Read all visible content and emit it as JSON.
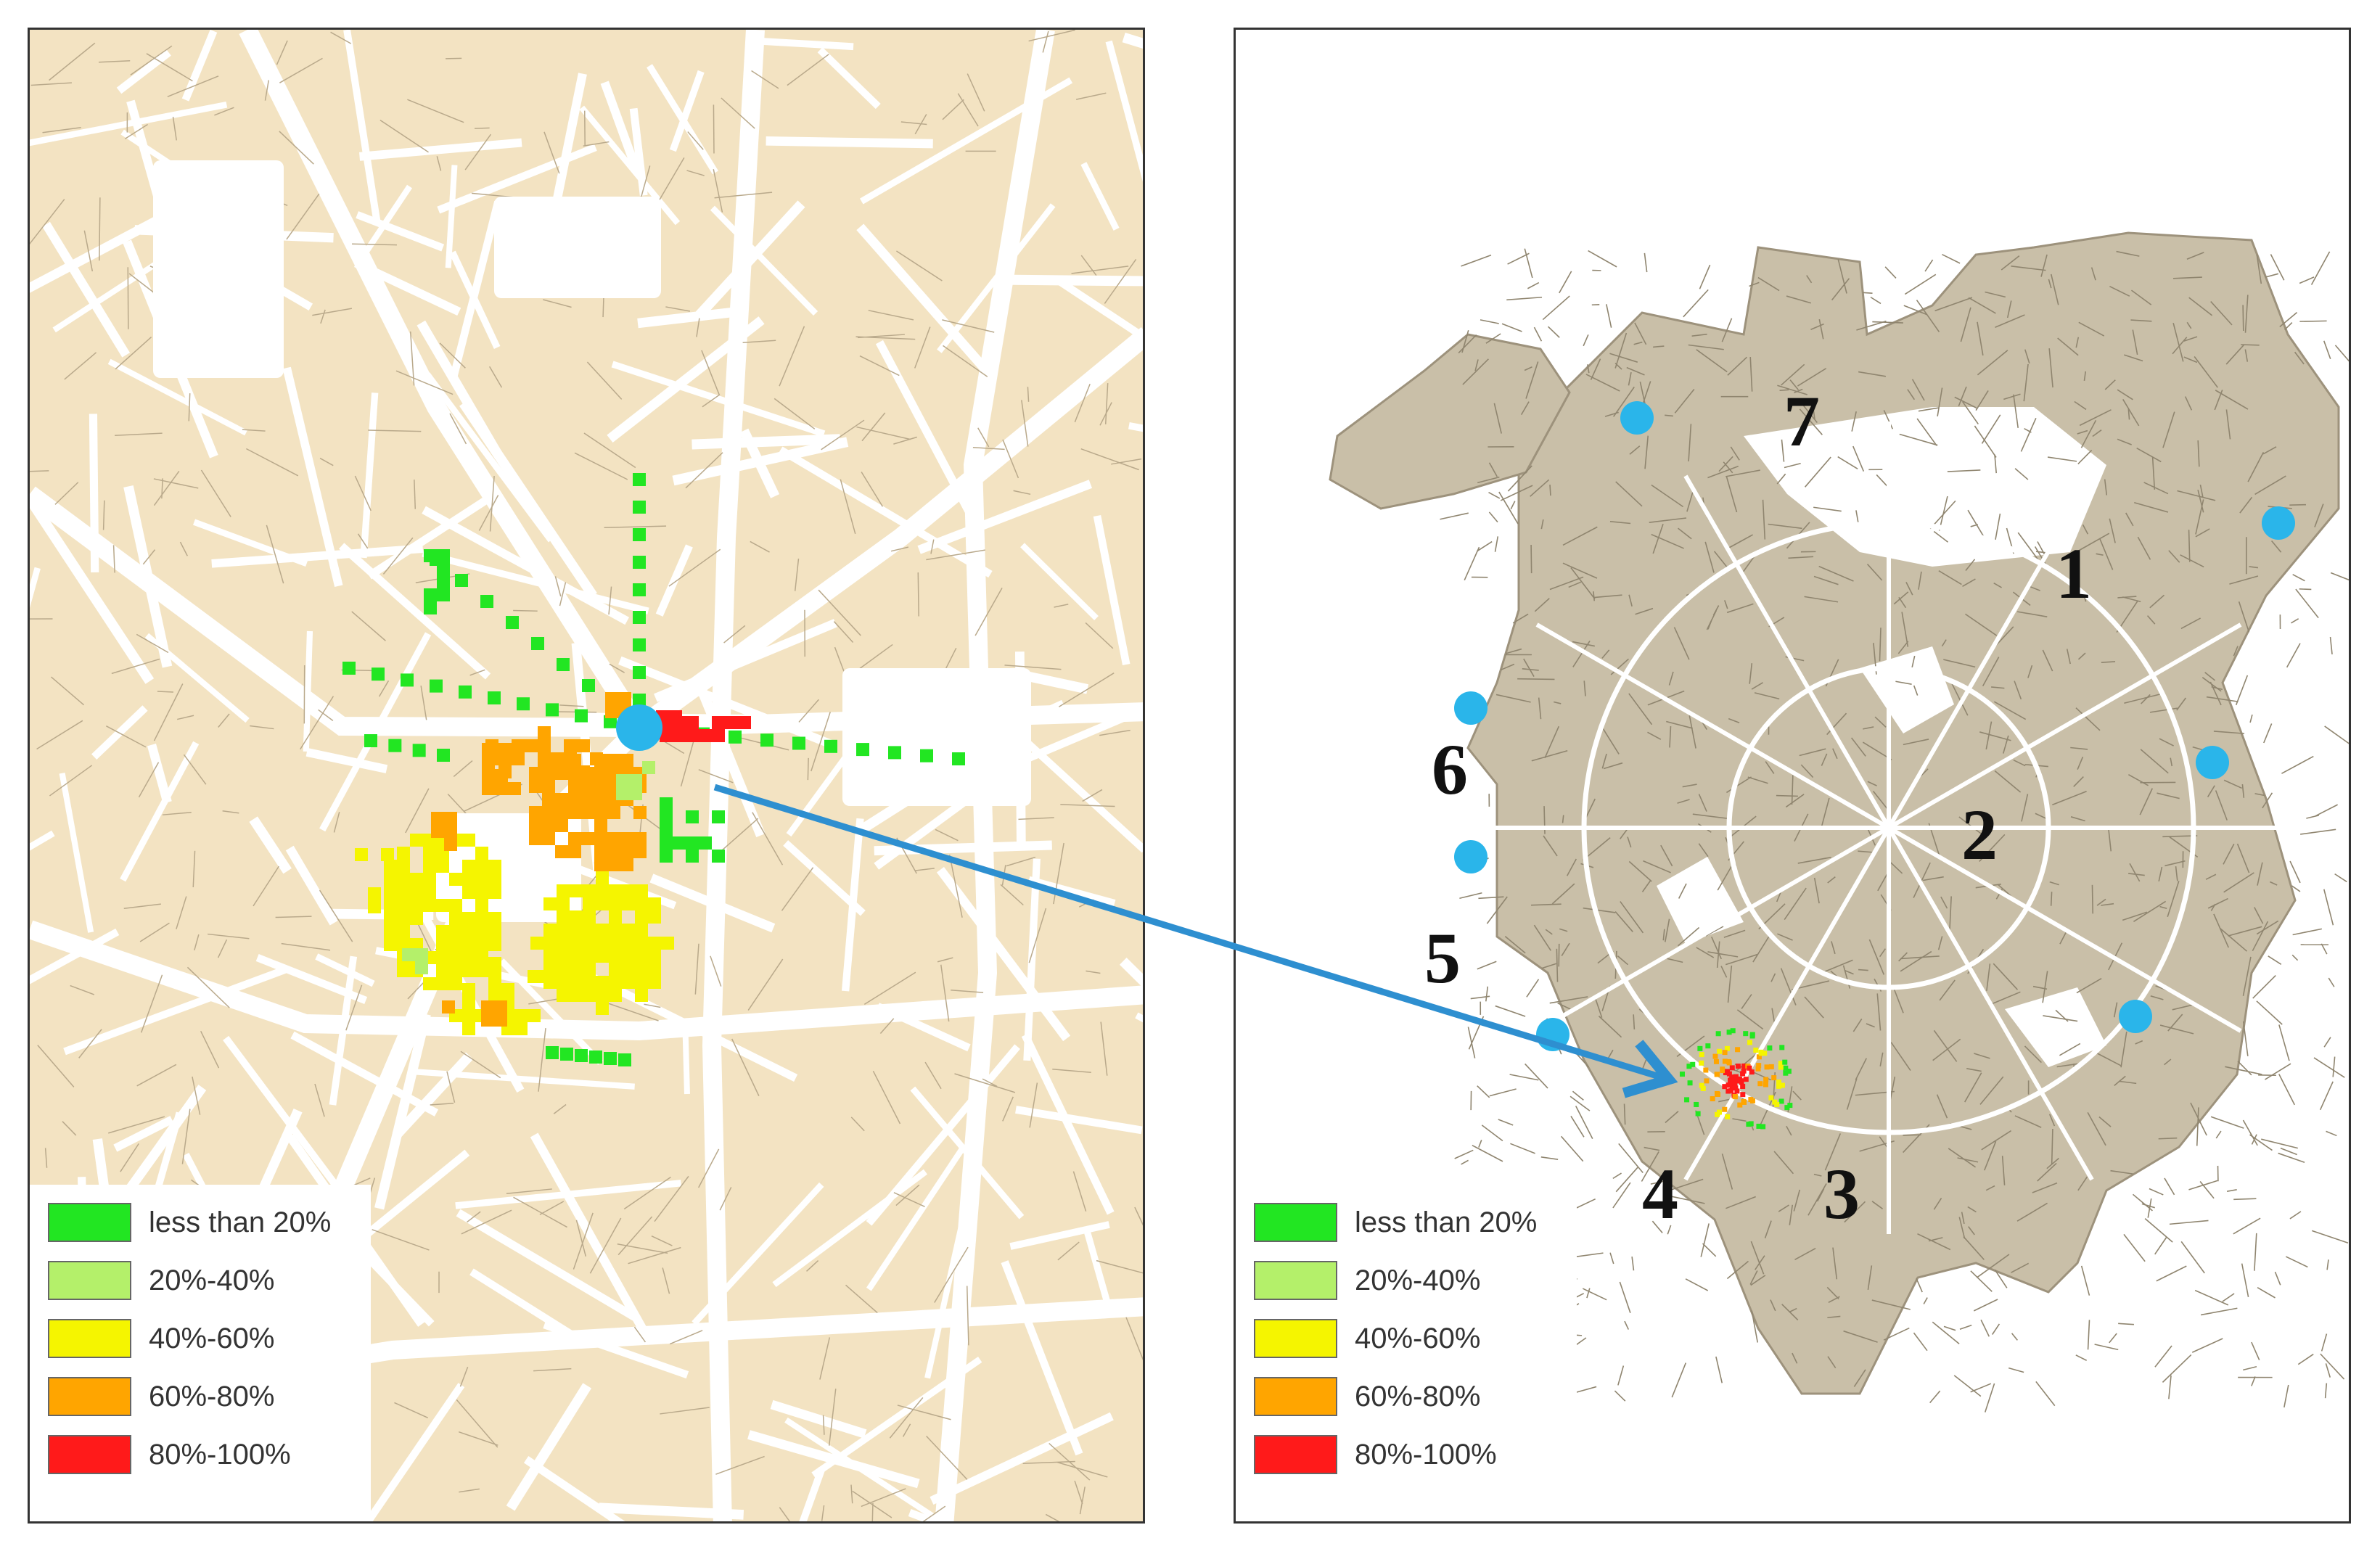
{
  "legend": {
    "items": [
      {
        "label": "less than 20%",
        "color": "#22e622"
      },
      {
        "label": "20%-40%",
        "color": "#b4f06a"
      },
      {
        "label": "40%-60%",
        "color": "#f5f500"
      },
      {
        "label": "60%-80%",
        "color": "#ffa500"
      },
      {
        "label": "80%-100%",
        "color": "#ff1a1a"
      }
    ]
  },
  "map": {
    "building_color": "#f3e3c2",
    "road_color": "#ffffff",
    "station_color": "#2ab5ea",
    "arrow_color": "#2e8fd0"
  },
  "station_labels": [
    "1",
    "2",
    "3",
    "4",
    "5",
    "6",
    "7"
  ]
}
